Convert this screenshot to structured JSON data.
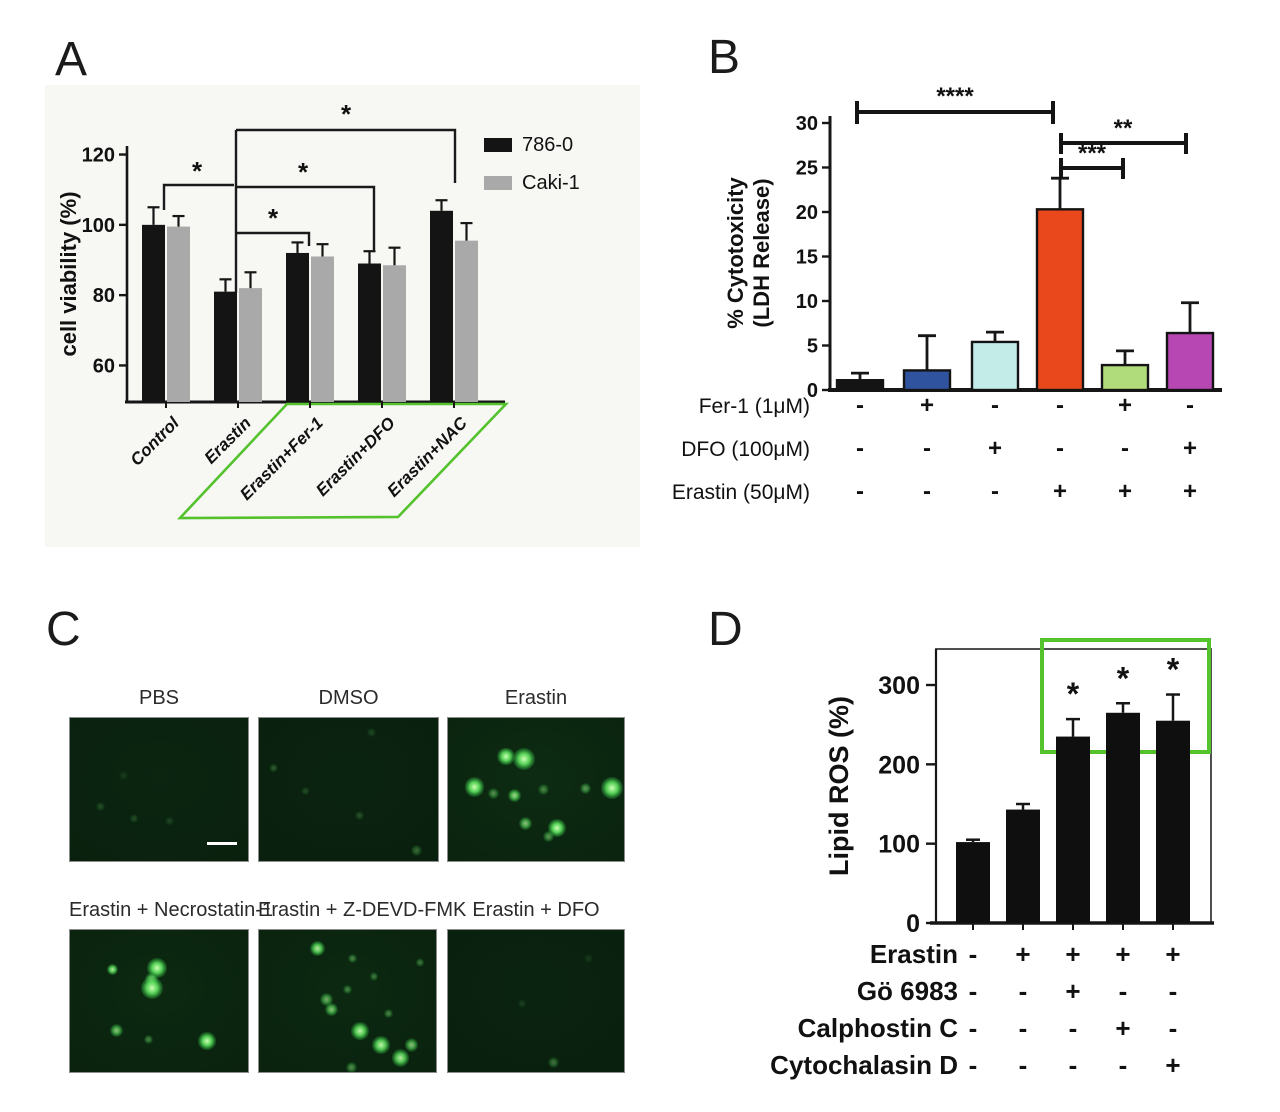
{
  "figure": {
    "panels": [
      {
        "id": "A",
        "letter": "A"
      },
      {
        "id": "B",
        "letter": "B"
      },
      {
        "id": "C",
        "letter": "C"
      },
      {
        "id": "D",
        "letter": "D"
      }
    ]
  },
  "colors": {
    "accent_green": "#54c22d",
    "bar_black": "#141414",
    "bar_gray": "#a9a9a9",
    "bar_blue": "#30539f",
    "bar_cyan": "#c3ebe8",
    "bar_orange": "#e8481c",
    "bar_lightgreen": "#b1dc7b",
    "bar_magenta": "#b747b2"
  },
  "chart_data": [
    {
      "id": "A",
      "type": "bar",
      "title": "",
      "ylabel": "cell viability (%)",
      "ylim": [
        49.6,
        120
      ],
      "yticks": [
        60,
        80,
        100,
        120
      ],
      "categories": [
        "Control",
        "Erastin",
        "Erastin+Fer-1",
        "Erastin+DFO",
        "Erastin+NAC"
      ],
      "series": [
        {
          "name": "786-0",
          "color": "#141414",
          "values": [
            100,
            81,
            92,
            89,
            104
          ],
          "errors": [
            5,
            3.5,
            3,
            3.5,
            3
          ]
        },
        {
          "name": "Caki-1",
          "color": "#a9a9a9",
          "values": [
            99.5,
            82,
            91,
            88.5,
            95.5
          ],
          "errors": [
            3,
            4.5,
            3.5,
            5,
            5
          ]
        }
      ],
      "legend_position": "top-right",
      "significance": [
        {
          "pair": "Control vs Erastin",
          "label": "*"
        },
        {
          "pair": "Erastin vs Erastin+Fer-1",
          "label": "*"
        },
        {
          "pair": "Erastin vs Erastin+DFO",
          "label": "*"
        },
        {
          "pair": "Erastin vs Erastin+NAC",
          "label": "*"
        }
      ],
      "highlight": "green parallelogram around Erastin+Fer-1, Erastin+DFO, Erastin+NAC labels"
    },
    {
      "id": "B",
      "type": "bar",
      "title": "",
      "ylabel": [
        "% Cytotoxicity",
        "(LDH Release)"
      ],
      "ylim": [
        0,
        31
      ],
      "yticks": [
        0,
        5,
        10,
        15,
        20,
        25,
        30
      ],
      "bars": [
        {
          "value": 1.1,
          "error": 0.8,
          "color": "#141414"
        },
        {
          "value": 2.2,
          "error": 3.9,
          "color": "#30539f"
        },
        {
          "value": 5.4,
          "error": 1.1,
          "color": "#c3ebe8"
        },
        {
          "value": 20.3,
          "error": 3.5,
          "color": "#e8481c"
        },
        {
          "value": 2.8,
          "error": 1.6,
          "color": "#b1dc7b"
        },
        {
          "value": 6.4,
          "error": 3.4,
          "color": "#b747b2"
        }
      ],
      "condition_rows": [
        {
          "label": "Fer-1 (1μM)",
          "signs": [
            "-",
            "+",
            "-",
            "-",
            "+",
            "-"
          ]
        },
        {
          "label": "DFO (100μM)",
          "signs": [
            "-",
            "-",
            "+",
            "-",
            "-",
            "+"
          ]
        },
        {
          "label": "Erastin (50μM)",
          "signs": [
            "-",
            "-",
            "-",
            "+",
            "+",
            "+"
          ]
        }
      ],
      "significance": [
        {
          "pair": "bar1 vs bar4",
          "label": "****"
        },
        {
          "pair": "bar4 vs bar6",
          "label": "**"
        },
        {
          "pair": "bar4 vs bar5",
          "label": "***"
        }
      ]
    },
    {
      "id": "D",
      "type": "bar",
      "title": "",
      "ylabel": "Lipid ROS (%)",
      "ylim": [
        0,
        345
      ],
      "yticks": [
        0,
        100,
        200,
        300
      ],
      "bars": [
        {
          "value": 102,
          "error": 3,
          "sig": ""
        },
        {
          "value": 143,
          "error": 7,
          "sig": ""
        },
        {
          "value": 235,
          "error": 22,
          "sig": "*"
        },
        {
          "value": 265,
          "error": 12,
          "sig": "*"
        },
        {
          "value": 255,
          "error": 33,
          "sig": "*"
        }
      ],
      "bar_color": "#0f0f0f",
      "condition_rows": [
        {
          "label": "Erastin",
          "signs": [
            "-",
            "+",
            "+",
            "+",
            "+"
          ]
        },
        {
          "label": "Gö 6983",
          "signs": [
            "-",
            "-",
            "+",
            "-",
            "-"
          ]
        },
        {
          "label": "Calphostin C",
          "signs": [
            "-",
            "-",
            "-",
            "+",
            "-"
          ]
        },
        {
          "label": "Cytochalasin D",
          "signs": [
            "-",
            "-",
            "-",
            "-",
            "+"
          ]
        }
      ],
      "highlight": "green rectangle over tops of bars 3-5"
    }
  ],
  "panelC": {
    "images": [
      {
        "label": "PBS",
        "shade": "#0b2511",
        "has_scale_bar": true,
        "dots": [
          [
            0.17,
            0.62,
            2,
            0.18
          ],
          [
            0.36,
            0.7,
            2,
            0.18
          ],
          [
            0.56,
            0.72,
            2,
            0.15
          ],
          [
            0.3,
            0.4,
            2,
            0.1
          ]
        ]
      },
      {
        "label": "DMSO",
        "shade": "#0a2310",
        "has_scale_bar": false,
        "dots": [
          [
            0.08,
            0.35,
            2,
            0.25
          ],
          [
            0.26,
            0.51,
            2,
            0.18
          ],
          [
            0.56,
            0.68,
            2,
            0.2
          ],
          [
            0.88,
            0.93,
            2.5,
            0.3
          ],
          [
            0.63,
            0.1,
            2,
            0.15
          ]
        ]
      },
      {
        "label": "Erastin",
        "shade": "#0d2b12",
        "has_scale_bar": false,
        "dots": [
          [
            0.33,
            0.27,
            4,
            1
          ],
          [
            0.43,
            0.29,
            5,
            1
          ],
          [
            0.15,
            0.48,
            4.5,
            1
          ],
          [
            0.26,
            0.53,
            2.5,
            0.45
          ],
          [
            0.38,
            0.54,
            3,
            0.8
          ],
          [
            0.54,
            0.5,
            2.5,
            0.4
          ],
          [
            0.78,
            0.49,
            2.5,
            0.5
          ],
          [
            0.93,
            0.49,
            5,
            1
          ],
          [
            0.44,
            0.74,
            3,
            0.7
          ],
          [
            0.62,
            0.77,
            4,
            1
          ],
          [
            0.57,
            0.83,
            2.5,
            0.5
          ]
        ]
      },
      {
        "label": "Erastin + Necrostatin-1",
        "shade": "#0c2911",
        "has_scale_bar": false,
        "dots": [
          [
            0.24,
            0.28,
            2.5,
            0.9
          ],
          [
            0.49,
            0.27,
            4.5,
            1
          ],
          [
            0.46,
            0.35,
            3,
            0.8
          ],
          [
            0.46,
            0.41,
            5,
            1
          ],
          [
            0.26,
            0.71,
            3,
            0.7
          ],
          [
            0.44,
            0.77,
            2,
            0.4
          ],
          [
            0.77,
            0.78,
            4,
            1
          ]
        ]
      },
      {
        "label": "Erastin + Z-DEVD-FMK",
        "shade": "#0c2911",
        "has_scale_bar": false,
        "dots": [
          [
            0.33,
            0.13,
            3.5,
            0.9
          ],
          [
            0.53,
            0.2,
            2,
            0.4
          ],
          [
            0.91,
            0.23,
            2,
            0.35
          ],
          [
            0.65,
            0.33,
            2,
            0.35
          ],
          [
            0.5,
            0.42,
            2,
            0.4
          ],
          [
            0.38,
            0.49,
            3,
            0.6
          ],
          [
            0.41,
            0.56,
            3,
            0.7
          ],
          [
            0.73,
            0.59,
            2,
            0.4
          ],
          [
            0.57,
            0.71,
            4,
            0.95
          ],
          [
            0.69,
            0.81,
            4,
            0.95
          ],
          [
            0.86,
            0.81,
            3,
            0.7
          ],
          [
            0.8,
            0.9,
            4,
            0.9
          ],
          [
            0.52,
            0.97,
            2.5,
            0.45
          ]
        ]
      },
      {
        "label": "Erastin + DFO",
        "shade": "#0a2310",
        "has_scale_bar": false,
        "dots": [
          [
            0.6,
            0.93,
            2.5,
            0.35
          ],
          [
            0.42,
            0.52,
            2,
            0.12
          ],
          [
            0.8,
            0.2,
            2,
            0.1
          ]
        ]
      }
    ]
  }
}
